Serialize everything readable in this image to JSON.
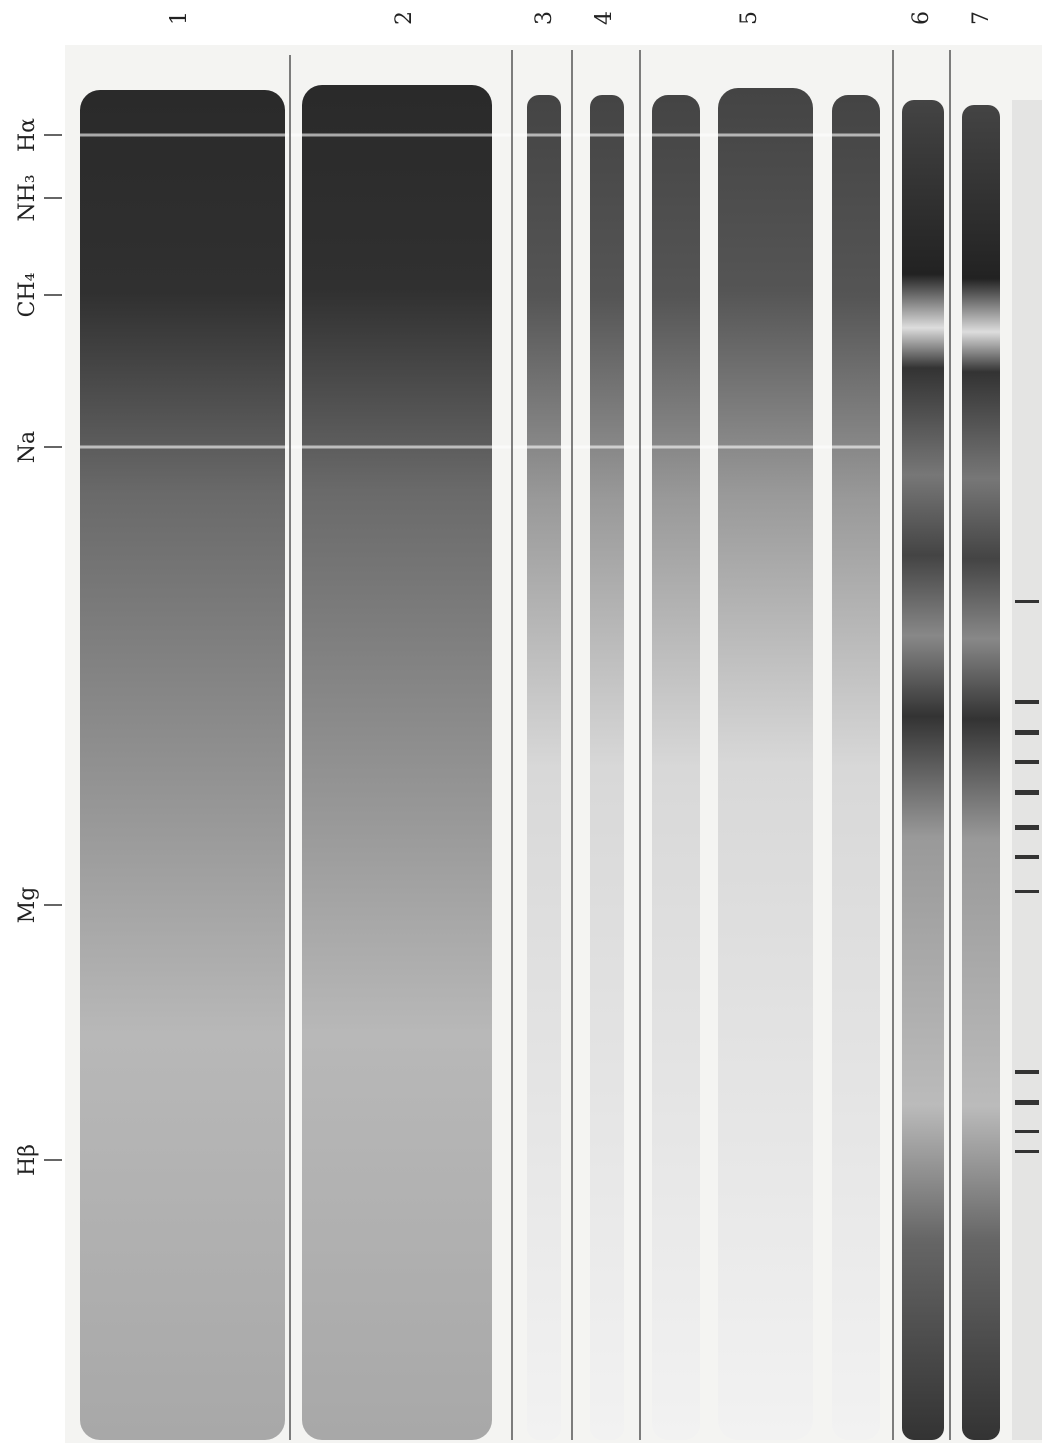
{
  "strip_labels": [
    "1",
    "2",
    "3",
    "4",
    "5",
    "6",
    "7"
  ],
  "lines": [
    {
      "label": "Hα"
    },
    {
      "label": "NH₃"
    },
    {
      "label": "CH₄"
    },
    {
      "label": "Na"
    },
    {
      "label": "Mg"
    },
    {
      "label": "Hβ"
    }
  ]
}
